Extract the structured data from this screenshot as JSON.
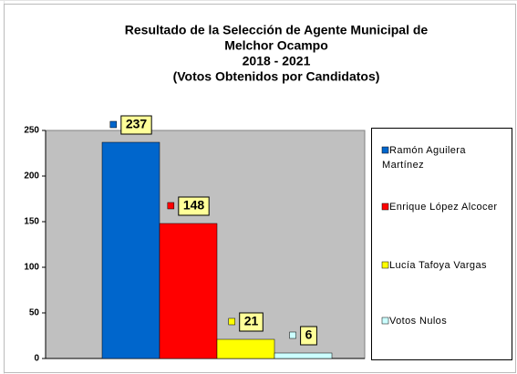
{
  "chart_data": {
    "type": "bar",
    "title": [
      "Resultado de la Selección de Agente Municipal de",
      "Melchor Ocampo",
      "2018 - 2021",
      "(Votos Obtenidos por Candidatos)"
    ],
    "categories": [
      null
    ],
    "series": [
      {
        "name": "Ramón Aguilera Martínez",
        "color": "#0066cc",
        "values": [
          237
        ]
      },
      {
        "name": "Enrique López Alcocer",
        "color": "#ff0000",
        "values": [
          148
        ]
      },
      {
        "name": "Lucía Tafoya Vargas",
        "color": "#ffff00",
        "values": [
          21
        ]
      },
      {
        "name": "Votos Nulos",
        "color": "#ccffff",
        "values": [
          6
        ]
      }
    ],
    "ylim": [
      0,
      250
    ],
    "yticks": [
      0,
      50,
      100,
      150,
      200,
      250
    ],
    "grid": false,
    "legend": "right",
    "plot_color": "#c0c0c0",
    "label_color": "#ffff99"
  }
}
